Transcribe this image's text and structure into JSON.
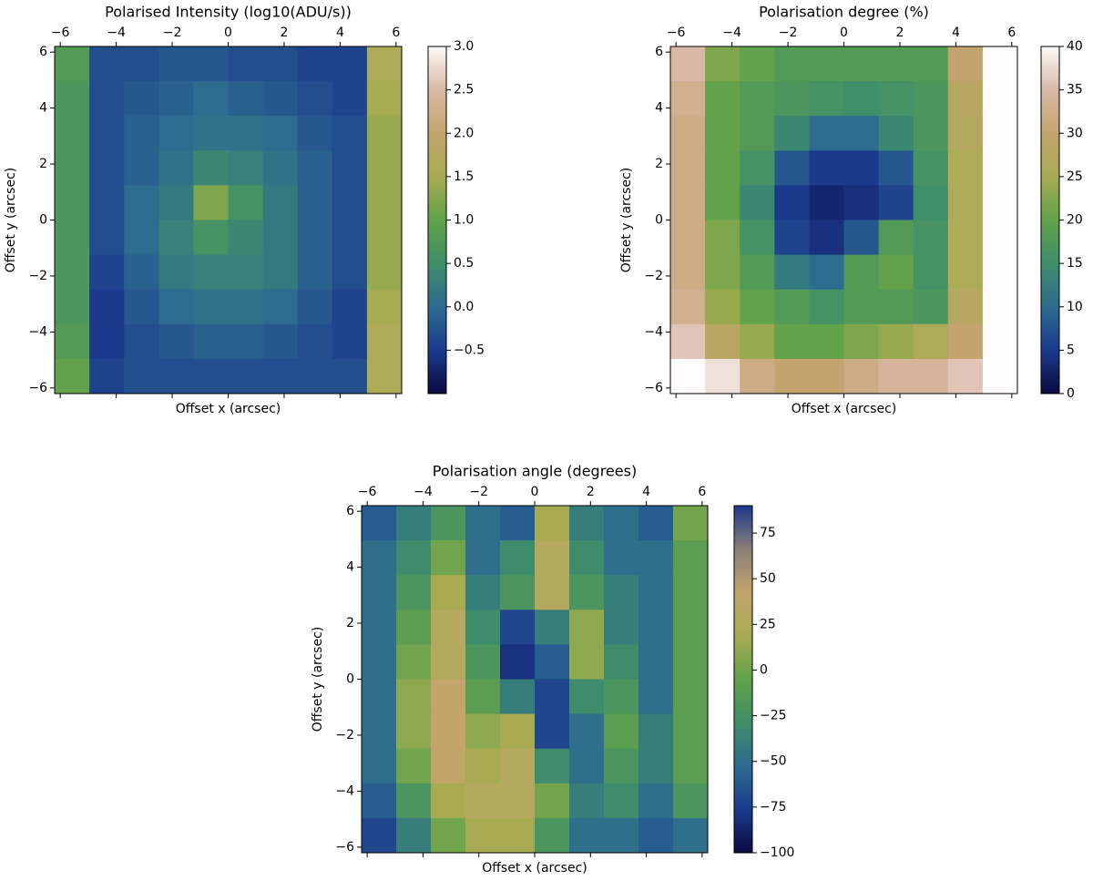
{
  "chart_data": [
    {
      "type": "heatmap",
      "title": "Polarised Intensity (log10(ADU/s))",
      "xlabel": "Offset x (arcsec)",
      "ylabel": "Offset y (arcsec)",
      "xlim": [
        -6.2,
        6.2
      ],
      "ylim": [
        -6.2,
        6.2
      ],
      "xticks": [
        {
          "value": -6,
          "label": "−6"
        },
        {
          "value": -4,
          "label": "−4"
        },
        {
          "value": -2,
          "label": "−2"
        },
        0,
        2,
        4,
        6
      ],
      "yticks": [
        {
          "value": -6,
          "label": "−6"
        },
        {
          "value": -4,
          "label": "−4"
        },
        {
          "value": -2,
          "label": "−2"
        },
        0,
        2,
        4,
        6
      ],
      "clim": [
        -1,
        3
      ],
      "cticks": [
        {
          "value": -0.5,
          "label": "−0.5"
        },
        {
          "value": 0,
          "label": "0.0"
        },
        0.5,
        {
          "value": 1,
          "label": "1.0"
        },
        1.5,
        {
          "value": 2,
          "label": "2.0"
        },
        2.5,
        {
          "value": 3,
          "label": "3.0"
        }
      ],
      "colorscale": [
        "#0a0a40",
        "#1b3a8c",
        "#2d6b8f",
        "#3f8e6a",
        "#62a24a",
        "#a7ab52",
        "#c4a46e",
        "#d9b8a6",
        "#fdfbfb"
      ],
      "z": [
        [
          0.8,
          -0.3,
          -0.3,
          -0.2,
          -0.2,
          -0.3,
          -0.3,
          -0.4,
          -0.4,
          1.6
        ],
        [
          0.7,
          -0.3,
          -0.2,
          -0.1,
          0,
          -0.1,
          -0.2,
          -0.3,
          -0.4,
          1.5
        ],
        [
          0.7,
          -0.3,
          -0.1,
          0,
          0.1,
          0.1,
          0,
          -0.2,
          -0.3,
          1.4
        ],
        [
          0.7,
          -0.3,
          -0.1,
          0.1,
          0.4,
          0.3,
          0.1,
          -0.1,
          -0.3,
          1.4
        ],
        [
          0.7,
          -0.3,
          0,
          0.2,
          1.2,
          0.6,
          0.2,
          -0.1,
          -0.3,
          1.4
        ],
        [
          0.7,
          -0.3,
          0,
          0.3,
          0.6,
          0.4,
          0.2,
          -0.1,
          -0.3,
          1.4
        ],
        [
          0.7,
          -0.4,
          -0.1,
          0.2,
          0.3,
          0.3,
          0.2,
          -0.1,
          -0.3,
          1.4
        ],
        [
          0.7,
          -0.5,
          -0.2,
          0,
          0.1,
          0.1,
          0,
          -0.2,
          -0.4,
          1.5
        ],
        [
          0.8,
          -0.5,
          -0.3,
          -0.2,
          -0.1,
          -0.1,
          -0.2,
          -0.3,
          -0.4,
          1.6
        ],
        [
          1.0,
          -0.4,
          -0.3,
          -0.3,
          -0.3,
          -0.3,
          -0.3,
          -0.3,
          -0.3,
          1.6
        ]
      ]
    },
    {
      "type": "heatmap",
      "title": "Polarisation degree (%)",
      "xlabel": "Offset x (arcsec)",
      "ylabel": "Offset y (arcsec)",
      "xlim": [
        -6.2,
        6.2
      ],
      "ylim": [
        -6.2,
        6.2
      ],
      "xticks": [
        {
          "value": -6,
          "label": "−6"
        },
        {
          "value": -4,
          "label": "−4"
        },
        {
          "value": -2,
          "label": "−2"
        },
        0,
        2,
        4,
        6
      ],
      "yticks": [
        {
          "value": -6,
          "label": "−6"
        },
        {
          "value": -4,
          "label": "−4"
        },
        {
          "value": -2,
          "label": "−2"
        },
        0,
        2,
        4,
        6
      ],
      "clim": [
        0,
        40
      ],
      "cticks": [
        0,
        5,
        10,
        15,
        20,
        25,
        30,
        35,
        40
      ],
      "colorscale": [
        "#0a0a40",
        "#1b3a8c",
        "#2d6b8f",
        "#3f8e6a",
        "#62a24a",
        "#a7ab52",
        "#c4a46e",
        "#d9b8a6",
        "#fdfbfb"
      ],
      "z": [
        [
          35,
          22,
          20,
          18,
          18,
          18,
          18,
          18,
          30,
          40
        ],
        [
          33,
          20,
          18,
          17,
          16,
          15,
          16,
          17,
          28,
          40
        ],
        [
          32,
          20,
          18,
          14,
          10,
          10,
          14,
          17,
          27,
          40
        ],
        [
          32,
          20,
          16,
          8,
          5,
          5,
          8,
          16,
          26,
          40
        ],
        [
          32,
          20,
          14,
          5,
          3,
          4,
          6,
          15,
          26,
          40
        ],
        [
          32,
          22,
          16,
          6,
          4,
          8,
          18,
          16,
          26,
          40
        ],
        [
          32,
          22,
          18,
          12,
          10,
          18,
          20,
          16,
          26,
          40
        ],
        [
          33,
          24,
          20,
          18,
          16,
          18,
          18,
          17,
          28,
          40
        ],
        [
          36,
          28,
          24,
          20,
          20,
          22,
          24,
          26,
          30,
          40
        ],
        [
          40,
          38,
          32,
          30,
          30,
          32,
          34,
          34,
          36,
          40
        ]
      ]
    },
    {
      "type": "heatmap",
      "title": "Polarisation angle (degrees)",
      "xlabel": "Offset x (arcsec)",
      "ylabel": "Offset y (arcsec)",
      "xlim": [
        -6.2,
        6.2
      ],
      "ylim": [
        -6.2,
        6.2
      ],
      "xticks": [
        {
          "value": -6,
          "label": "−6"
        },
        {
          "value": -4,
          "label": "−4"
        },
        {
          "value": -2,
          "label": "−2"
        },
        0,
        2,
        4,
        6
      ],
      "yticks": [
        {
          "value": -6,
          "label": "−6"
        },
        {
          "value": -4,
          "label": "−4"
        },
        {
          "value": -2,
          "label": "−2"
        },
        0,
        2,
        4,
        6
      ],
      "clim": [
        -100,
        90
      ],
      "cticks": [
        {
          "value": -100,
          "label": "−100"
        },
        {
          "value": -75,
          "label": "−75"
        },
        {
          "value": -50,
          "label": "−50"
        },
        {
          "value": -25,
          "label": "−25"
        },
        0,
        25,
        50,
        75
      ],
      "colorscale": [
        "#0a0a40",
        "#1b3a8c",
        "#2d6b8f",
        "#3f8e6a",
        "#62a24a",
        "#a7ab52",
        "#c4a46e",
        "#8a7f78",
        "#1b3a8c"
      ],
      "z": [
        [
          -60,
          -40,
          -20,
          -50,
          -60,
          20,
          -40,
          -50,
          -60,
          0
        ],
        [
          -50,
          -30,
          0,
          -50,
          -30,
          30,
          -30,
          -50,
          -50,
          -10
        ],
        [
          -50,
          -20,
          20,
          -40,
          -20,
          30,
          -20,
          -40,
          -50,
          -10
        ],
        [
          -50,
          -10,
          30,
          -30,
          -70,
          -40,
          10,
          -40,
          -50,
          -10
        ],
        [
          -50,
          0,
          30,
          -20,
          -80,
          -60,
          10,
          -30,
          -50,
          -10
        ],
        [
          -50,
          10,
          40,
          -10,
          -40,
          -70,
          -30,
          -20,
          -50,
          -10
        ],
        [
          -50,
          10,
          40,
          10,
          20,
          -70,
          -50,
          -10,
          -40,
          -10
        ],
        [
          -50,
          0,
          40,
          20,
          30,
          -30,
          -50,
          -20,
          -40,
          -10
        ],
        [
          -60,
          -20,
          20,
          30,
          30,
          0,
          -40,
          -30,
          -50,
          -20
        ],
        [
          -70,
          -40,
          0,
          20,
          20,
          -20,
          -50,
          -50,
          -60,
          -50
        ]
      ]
    }
  ]
}
